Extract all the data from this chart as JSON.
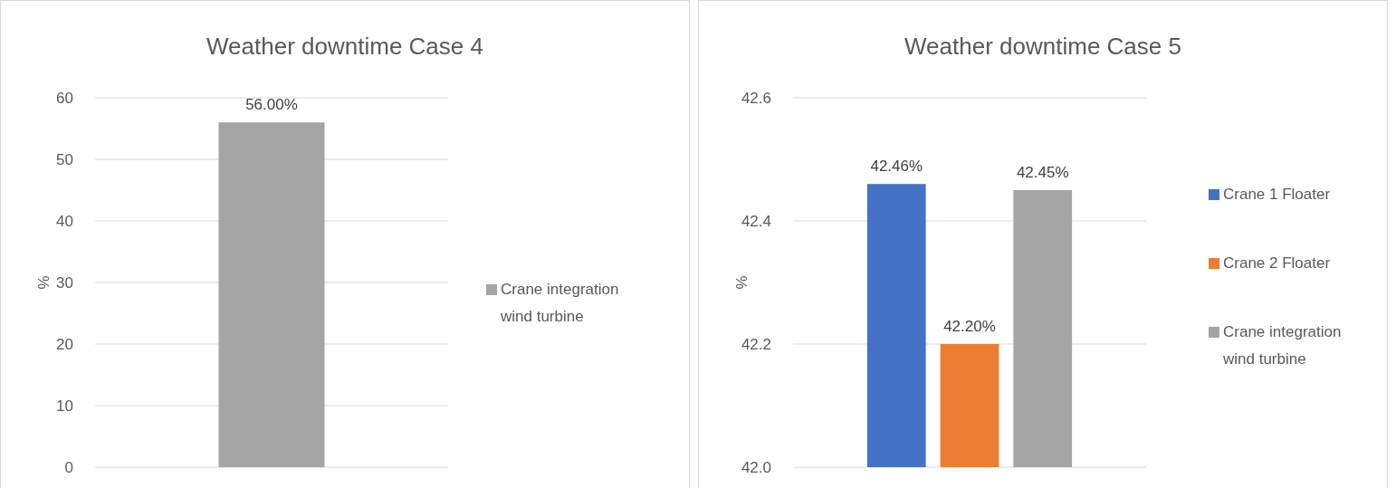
{
  "chart_data": [
    {
      "type": "bar",
      "title": "Weather downtime Case 4",
      "ylabel": "%",
      "categories": [
        null
      ],
      "series": [
        {
          "name": "Crane integration wind turbine",
          "color": "#a5a5a5",
          "values": [
            56
          ],
          "value_labels": [
            "56.00%"
          ]
        }
      ],
      "ylim": [
        0,
        60
      ],
      "yticks": [
        0,
        10,
        20,
        30,
        40,
        50,
        60
      ],
      "grid": "y",
      "legend": "right",
      "tick_labels": "y"
    },
    {
      "type": "bar",
      "title": "Weather downtime Case 5",
      "ylabel": "%",
      "categories": [
        null
      ],
      "series": [
        {
          "name": "Crane 1 Floater",
          "color": "#4472c4",
          "values": [
            42.46
          ],
          "value_labels": [
            "42.46%"
          ]
        },
        {
          "name": "Crane 2 Floater",
          "color": "#ed7d31",
          "values": [
            42.2
          ],
          "value_labels": [
            "42.20%"
          ]
        },
        {
          "name": "Crane integration wind turbine",
          "color": "#a5a5a5",
          "values": [
            42.45
          ],
          "value_labels": [
            "42.45%"
          ]
        }
      ],
      "ylim": [
        42.0,
        42.6
      ],
      "yticks": [
        {
          "value": 42.0,
          "label": "42.0"
        },
        42.2,
        42.4,
        42.6
      ],
      "grid": "y",
      "legend": "right",
      "tick_labels": "y"
    }
  ]
}
